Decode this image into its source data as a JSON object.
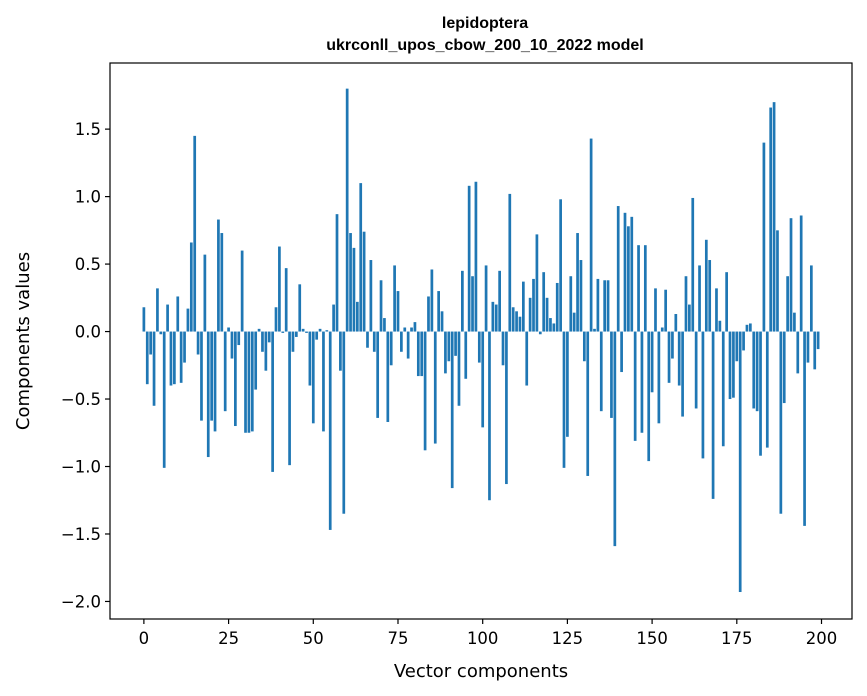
{
  "chart_data": {
    "type": "bar",
    "title": "lepidoptera",
    "subtitle": "ukrconll_upos_cbow_200_10_2022 model",
    "xlabel": "Vector components",
    "ylabel": "Components values",
    "xlim": [
      -10,
      209
    ],
    "ylim": [
      -2.13,
      1.99
    ],
    "xticks": [
      0,
      25,
      50,
      75,
      100,
      125,
      150,
      175,
      200
    ],
    "yticks": [
      -2.0,
      -1.5,
      -1.0,
      -0.5,
      0.0,
      0.5,
      1.0,
      1.5
    ],
    "ytick_labels": [
      "−2.0",
      "−1.5",
      "−1.0",
      "−0.5",
      "0.0",
      "0.5",
      "1.0",
      "1.5"
    ],
    "bar_color": "#1f77b4",
    "grid": false,
    "values": [
      0.18,
      -0.39,
      -0.17,
      -0.55,
      0.32,
      -0.02,
      -1.01,
      0.2,
      -0.4,
      -0.39,
      0.26,
      -0.38,
      -0.23,
      0.17,
      0.66,
      1.45,
      -0.17,
      -0.66,
      0.57,
      -0.93,
      -0.66,
      -0.74,
      0.83,
      0.73,
      -0.59,
      0.03,
      -0.2,
      -0.7,
      -0.1,
      0.6,
      -0.75,
      -0.75,
      -0.74,
      -0.43,
      0.02,
      -0.15,
      -0.29,
      -0.08,
      -1.04,
      0.18,
      0.63,
      -0.01,
      0.47,
      -0.99,
      -0.15,
      -0.04,
      0.35,
      0.02,
      -0.01,
      -0.4,
      -0.68,
      -0.06,
      0.02,
      -0.74,
      0.01,
      -1.47,
      0.2,
      0.87,
      -0.29,
      -1.35,
      1.8,
      0.73,
      0.62,
      0.22,
      1.1,
      0.74,
      -0.12,
      0.53,
      -0.15,
      -0.64,
      0.38,
      0.1,
      -0.67,
      -0.25,
      0.49,
      0.3,
      -0.15,
      0.03,
      -0.2,
      0.03,
      0.07,
      -0.33,
      -0.33,
      -0.88,
      0.26,
      0.46,
      -0.83,
      0.3,
      0.15,
      -0.31,
      -0.22,
      -1.16,
      -0.18,
      -0.55,
      0.45,
      -0.35,
      1.08,
      0.41,
      1.11,
      -0.23,
      -0.71,
      0.49,
      -1.25,
      0.22,
      0.2,
      0.45,
      -0.25,
      -1.13,
      1.02,
      0.18,
      0.15,
      0.11,
      0.37,
      -0.4,
      0.25,
      0.39,
      0.72,
      -0.02,
      0.44,
      0.25,
      0.1,
      0.06,
      0.36,
      0.98,
      -1.01,
      -0.78,
      0.41,
      0.14,
      0.73,
      0.53,
      -0.22,
      -1.07,
      1.43,
      0.02,
      0.39,
      -0.59,
      0.38,
      0.38,
      -0.64,
      -1.59,
      0.93,
      -0.3,
      0.88,
      0.78,
      0.85,
      -0.81,
      0.64,
      -0.75,
      0.64,
      -0.96,
      -0.45,
      0.32,
      -0.68,
      0.03,
      0.31,
      -0.38,
      -0.2,
      0.13,
      -0.4,
      -0.63,
      0.41,
      0.2,
      0.99,
      -0.57,
      0.49,
      -0.94,
      0.68,
      0.53,
      -1.24,
      0.32,
      0.08,
      -0.85,
      0.44,
      -0.5,
      -0.49,
      -0.22,
      -1.93,
      -0.14,
      0.05,
      0.06,
      -0.57,
      -0.59,
      -0.92,
      1.4,
      -0.86,
      1.66,
      1.7,
      0.75,
      -1.35,
      -0.53,
      0.41,
      0.84,
      0.14,
      -0.31,
      0.86,
      -1.44,
      -0.23,
      0.49,
      -0.28,
      -0.13
    ]
  }
}
